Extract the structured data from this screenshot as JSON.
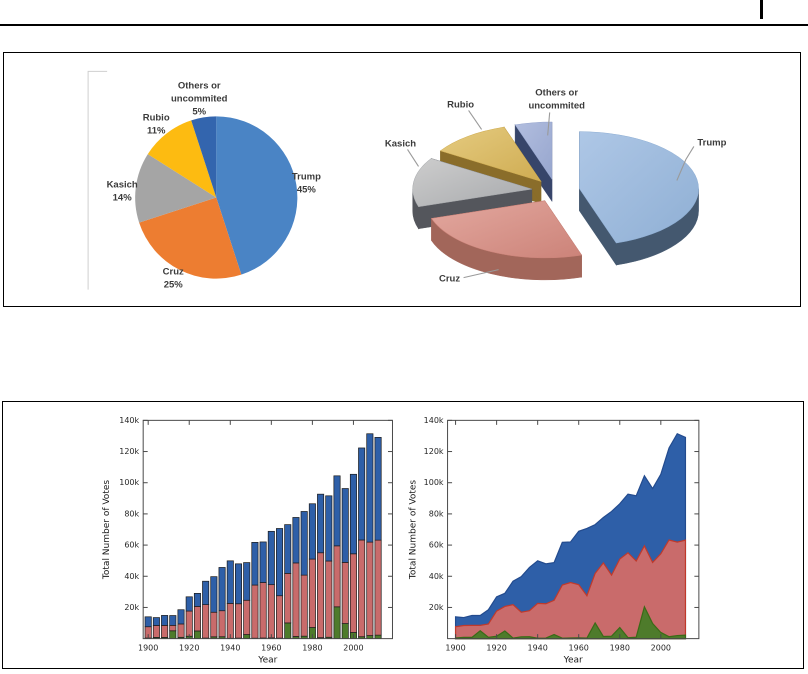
{
  "page": {
    "background": "#ffffff"
  },
  "chart_data": [
    {
      "type": "pie",
      "variant": "flat-2d",
      "position": "top-left",
      "labels": [
        "Trump",
        "Cruz",
        "Kasich",
        "Rubio",
        "Others or uncommited"
      ],
      "values": [
        45,
        25,
        14,
        11,
        5
      ],
      "slice_label_lines": [
        [
          "Trump",
          "45%"
        ],
        [
          "Cruz",
          "25%"
        ],
        [
          "Kasich",
          "14%"
        ],
        [
          "Rubio",
          "11%"
        ],
        [
          "Others or",
          "uncommited",
          "5%"
        ]
      ],
      "colors": [
        "#4A84C5",
        "#ED7D31",
        "#A5A5A5",
        "#FDBB11",
        "#3365AE"
      ],
      "start_angle": "12 o'clock, clockwise",
      "legend": "none"
    },
    {
      "type": "pie",
      "variant": "3d-exploded",
      "position": "top-right",
      "labels": [
        "Trump",
        "Cruz",
        "Kasich",
        "Rubio",
        "Others or uncommited"
      ],
      "values": [
        45,
        25,
        14,
        11,
        5
      ],
      "slice_label_lines": [
        [
          "Trump"
        ],
        [
          "Cruz"
        ],
        [
          "Kasich"
        ],
        [
          "Rubio"
        ],
        [
          "Others or",
          "uncommited"
        ]
      ],
      "colors_top_light": [
        "#AEC7E6",
        "#E3A89F",
        "#CDCDCD",
        "#E5CB80",
        "#B2BEDF"
      ],
      "colors_top_dark": [
        "#8FAFD4",
        "#CC8379",
        "#A7A9AC",
        "#CFAC52",
        "#97A6CE"
      ],
      "colors_side": [
        "#44586F",
        "#A2665A",
        "#54565C",
        "#8A6D2A",
        "#37456A"
      ],
      "legend": "none"
    },
    {
      "type": "bar",
      "stacked": true,
      "position": "bottom-left",
      "xlabel": "Year",
      "ylabel": "Total Number of Votes",
      "ylim": [
        0,
        140000
      ],
      "ytick_labels": [
        "20k",
        "40k",
        "60k",
        "80k",
        "100k",
        "120k",
        "140k"
      ],
      "xtick_labels": [
        "1900",
        "1920",
        "1940",
        "1960",
        "1980",
        "2000"
      ],
      "x": [
        1900,
        1904,
        1908,
        1912,
        1916,
        1920,
        1924,
        1928,
        1932,
        1936,
        1940,
        1944,
        1948,
        1952,
        1956,
        1960,
        1964,
        1968,
        1972,
        1976,
        1980,
        1984,
        1988,
        1992,
        1996,
        2000,
        2004,
        2008,
        2012
      ],
      "series": [
        {
          "name": "green (bottom)",
          "color": "#4E7B2B",
          "values": [
            400,
            800,
            800,
            5030,
            860,
            1550,
            4930,
            370,
            1170,
            1220,
            240,
            350,
            2620,
            290,
            410,
            500,
            340,
            10080,
            1380,
            1580,
            7130,
            620,
            900,
            20410,
            9680,
            3950,
            1230,
            1960,
            2240
          ]
        },
        {
          "name": "red (middle)",
          "color": "#C96B6B",
          "values": [
            7230,
            7630,
            7680,
            3490,
            8550,
            16140,
            15720,
            21430,
            15760,
            16680,
            22350,
            22020,
            21990,
            34080,
            35580,
            34110,
            27180,
            31780,
            47170,
            39150,
            43900,
            54460,
            48890,
            39100,
            39200,
            50460,
            62040,
            59950,
            60930
          ]
        },
        {
          "name": "blue (top)",
          "color": "#2E5FA8",
          "values": [
            6370,
            5080,
            6410,
            6300,
            9130,
            9140,
            8390,
            15020,
            22820,
            27750,
            27310,
            25610,
            24180,
            27380,
            26030,
            34220,
            43130,
            31270,
            29170,
            40830,
            35480,
            37580,
            41810,
            44910,
            47400,
            51000,
            59030,
            69500,
            65920
          ]
        }
      ],
      "grid": false,
      "legend": "none"
    },
    {
      "type": "area",
      "stacked": true,
      "position": "bottom-right",
      "xlabel": "Year",
      "ylabel": "Total Number of Votes",
      "ylim": [
        0,
        140000
      ],
      "ytick_labels": [
        "20k",
        "40k",
        "60k",
        "80k",
        "100k",
        "120k",
        "140k"
      ],
      "xtick_labels": [
        "1900",
        "1920",
        "1940",
        "1960",
        "1980",
        "2000"
      ],
      "x": [
        1900,
        1904,
        1908,
        1912,
        1916,
        1920,
        1924,
        1928,
        1932,
        1936,
        1940,
        1944,
        1948,
        1952,
        1956,
        1960,
        1964,
        1968,
        1972,
        1976,
        1980,
        1984,
        1988,
        1992,
        1996,
        2000,
        2004,
        2008,
        2012
      ],
      "series": [
        {
          "name": "green (bottom)",
          "color": "#4E7B2B",
          "edge": "#3A6A17",
          "values": [
            400,
            800,
            800,
            5030,
            860,
            1550,
            4930,
            370,
            1170,
            1220,
            240,
            350,
            2620,
            290,
            410,
            500,
            340,
            10080,
            1380,
            1580,
            7130,
            620,
            900,
            20410,
            9680,
            3950,
            1230,
            1960,
            2240
          ]
        },
        {
          "name": "red (middle)",
          "color": "#C96B6B",
          "edge": "#C0392B",
          "values": [
            7230,
            7630,
            7680,
            3490,
            8550,
            16140,
            15720,
            21430,
            15760,
            16680,
            22350,
            22020,
            21990,
            34080,
            35580,
            34110,
            27180,
            31780,
            47170,
            39150,
            43900,
            54460,
            48890,
            39100,
            39200,
            50460,
            62040,
            59950,
            60930
          ]
        },
        {
          "name": "blue (top)",
          "color": "#2E5FA8",
          "edge": "#234B8E",
          "values": [
            6370,
            5080,
            6410,
            6300,
            9130,
            9140,
            8390,
            15020,
            22820,
            27750,
            27310,
            25610,
            24180,
            27380,
            26030,
            34220,
            43130,
            31270,
            29170,
            40830,
            35480,
            37580,
            41810,
            44910,
            47400,
            51000,
            59030,
            69500,
            65920
          ]
        }
      ],
      "grid": false,
      "legend": "none"
    }
  ]
}
